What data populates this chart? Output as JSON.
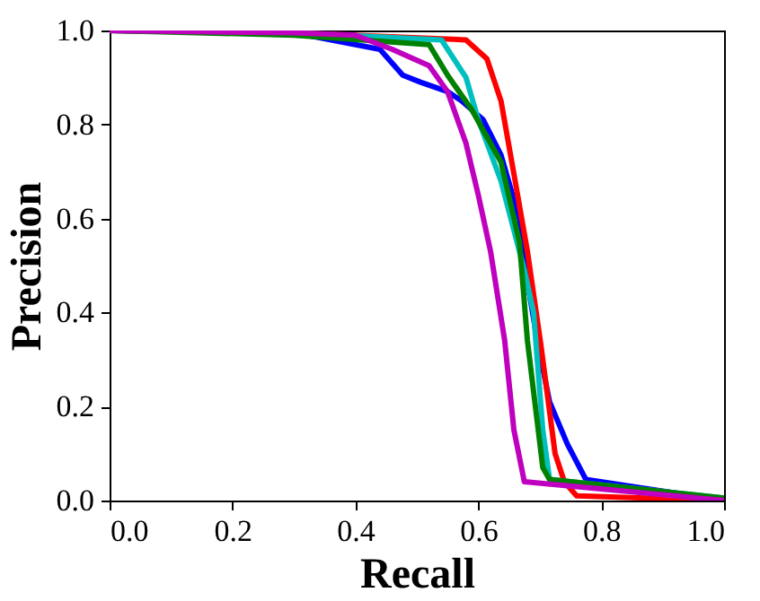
{
  "chart_data": {
    "type": "line",
    "xlabel": "Recall",
    "ylabel": "Precision",
    "xlim": [
      0.0,
      1.0
    ],
    "ylim": [
      0.0,
      1.0
    ],
    "xticks": [
      {
        "value": 0,
        "label": "0.0"
      },
      0.2,
      0.4,
      0.6,
      0.8,
      {
        "value": 1,
        "label": "1.0"
      }
    ],
    "yticks": [
      {
        "value": 0,
        "label": "0.0"
      },
      0.2,
      0.4,
      0.6,
      0.8,
      {
        "value": 1,
        "label": "1.0"
      }
    ],
    "grid": false,
    "legend": false,
    "line_style": "solid",
    "series": [
      {
        "color": "#0000ff",
        "x": [
          0.0,
          0.3,
          0.44,
          0.477,
          0.506,
          0.55,
          0.573,
          0.608,
          0.637,
          0.667,
          0.673,
          0.696,
          0.716,
          0.745,
          0.775,
          1.0
        ],
        "values": [
          1.0,
          0.995,
          0.96,
          0.905,
          0.89,
          0.87,
          0.85,
          0.81,
          0.735,
          0.6,
          0.52,
          0.34,
          0.21,
          0.12,
          0.045,
          0.0
        ]
      },
      {
        "color": "#ff0000",
        "x": [
          0.0,
          0.3,
          0.58,
          0.614,
          0.637,
          0.66,
          0.68,
          0.702,
          0.725,
          0.74,
          0.76,
          1.0
        ],
        "values": [
          1.0,
          0.995,
          0.98,
          0.94,
          0.85,
          0.68,
          0.53,
          0.33,
          0.1,
          0.04,
          0.01,
          0.0
        ]
      },
      {
        "color": "#00bfbf",
        "x": [
          0.0,
          0.3,
          0.54,
          0.58,
          0.6,
          0.637,
          0.675,
          0.69,
          0.705,
          0.716,
          1.0
        ],
        "values": [
          1.0,
          0.995,
          0.98,
          0.9,
          0.81,
          0.68,
          0.49,
          0.4,
          0.15,
          0.045,
          0.005
        ]
      },
      {
        "color": "#008000",
        "x": [
          0.0,
          0.3,
          0.52,
          0.55,
          0.59,
          0.637,
          0.667,
          0.68,
          0.705,
          0.716,
          1.0
        ],
        "values": [
          1.0,
          0.99,
          0.97,
          0.905,
          0.83,
          0.72,
          0.55,
          0.34,
          0.07,
          0.045,
          0.005
        ]
      },
      {
        "color": "#bf00bf",
        "x": [
          0.0,
          0.3,
          0.4,
          0.46,
          0.52,
          0.55,
          0.58,
          0.6,
          0.62,
          0.643,
          0.658,
          0.675,
          1.0
        ],
        "values": [
          1.0,
          0.995,
          0.99,
          0.96,
          0.925,
          0.87,
          0.76,
          0.65,
          0.53,
          0.34,
          0.15,
          0.04,
          0.0
        ]
      }
    ]
  }
}
